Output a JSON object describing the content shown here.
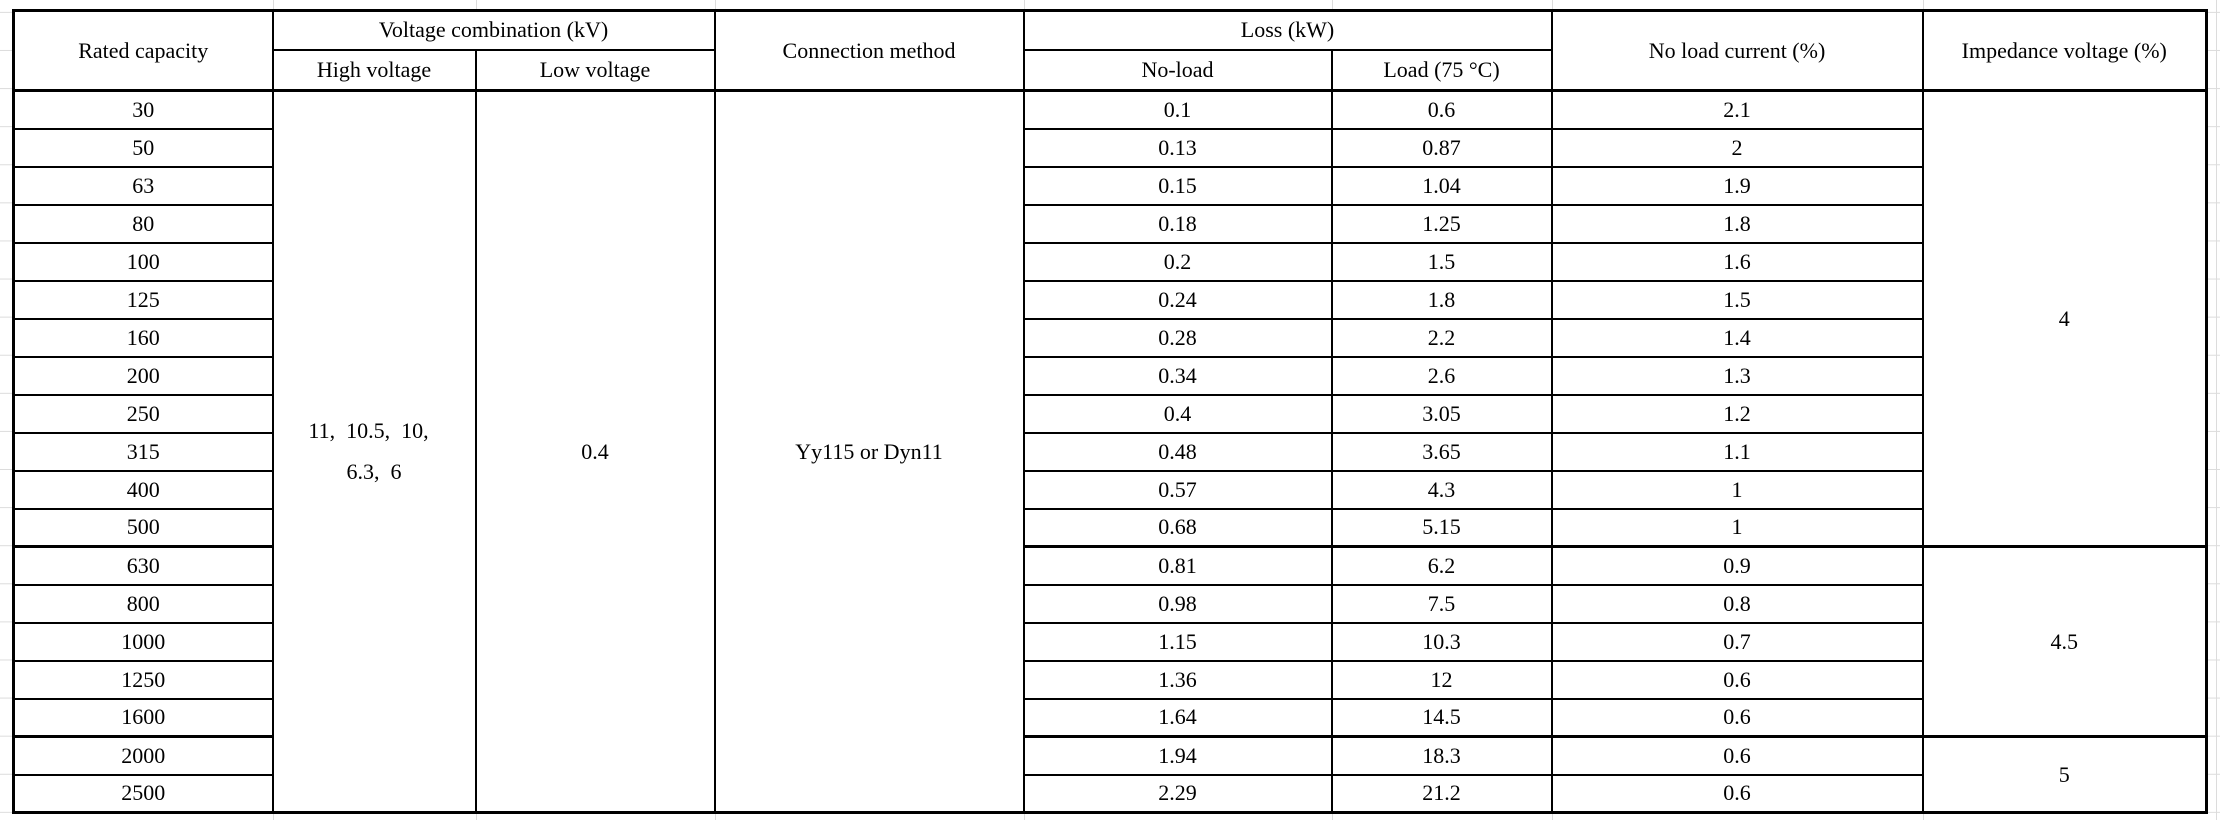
{
  "table": {
    "headers": {
      "rated_capacity": "Rated capacity",
      "voltage_combination": "Voltage combination (kV)",
      "high_voltage": "High voltage",
      "low_voltage": "Low voltage",
      "connection_method": "Connection method",
      "loss": "Loss (kW)",
      "no_load": "No-load",
      "load_75c": "Load (75 ℃)",
      "no_load_current": "No load current (%)",
      "impedance_voltage": "Impedance voltage (%)"
    },
    "merged": {
      "high_voltage_value": "11、10.5、10、6.3、6",
      "high_voltage_lines": [
        "11、10.5、10、",
        "6.3、6"
      ],
      "low_voltage_value": "0.4",
      "connection_method_value": "Yy115 or Dyn11",
      "impedance_groups": [
        {
          "value": "4",
          "rows": 12
        },
        {
          "value": "4.5",
          "rows": 5
        },
        {
          "value": "5",
          "rows": 2
        }
      ]
    },
    "rows": [
      {
        "capacity": "30",
        "no_load": "0.1",
        "load": "0.6",
        "current": "2.1"
      },
      {
        "capacity": "50",
        "no_load": "0.13",
        "load": "0.87",
        "current": "2"
      },
      {
        "capacity": "63",
        "no_load": "0.15",
        "load": "1.04",
        "current": "1.9"
      },
      {
        "capacity": "80",
        "no_load": "0.18",
        "load": "1.25",
        "current": "1.8"
      },
      {
        "capacity": "100",
        "no_load": "0.2",
        "load": "1.5",
        "current": "1.6"
      },
      {
        "capacity": "125",
        "no_load": "0.24",
        "load": "1.8",
        "current": "1.5"
      },
      {
        "capacity": "160",
        "no_load": "0.28",
        "load": "2.2",
        "current": "1.4"
      },
      {
        "capacity": "200",
        "no_load": "0.34",
        "load": "2.6",
        "current": "1.3"
      },
      {
        "capacity": "250",
        "no_load": "0.4",
        "load": "3.05",
        "current": "1.2"
      },
      {
        "capacity": "315",
        "no_load": "0.48",
        "load": "3.65",
        "current": "1.1"
      },
      {
        "capacity": "400",
        "no_load": "0.57",
        "load": "4.3",
        "current": "1"
      },
      {
        "capacity": "500",
        "no_load": "0.68",
        "load": "5.15",
        "current": "1"
      },
      {
        "capacity": "630",
        "no_load": "0.81",
        "load": "6.2",
        "current": "0.9"
      },
      {
        "capacity": "800",
        "no_load": "0.98",
        "load": "7.5",
        "current": "0.8"
      },
      {
        "capacity": "1000",
        "no_load": "1.15",
        "load": "10.3",
        "current": "0.7"
      },
      {
        "capacity": "1250",
        "no_load": "1.36",
        "load": "12",
        "current": "0.6"
      },
      {
        "capacity": "1600",
        "no_load": "1.64",
        "load": "14.5",
        "current": "0.6"
      },
      {
        "capacity": "2000",
        "no_load": "1.94",
        "load": "18.3",
        "current": "0.6"
      },
      {
        "capacity": "2500",
        "no_load": "2.29",
        "load": "21.2",
        "current": "0.6"
      }
    ]
  },
  "colors": {
    "border": "#000000",
    "text": "#000000",
    "background": "#ffffff",
    "faint_grid": "#dcdcdc"
  }
}
